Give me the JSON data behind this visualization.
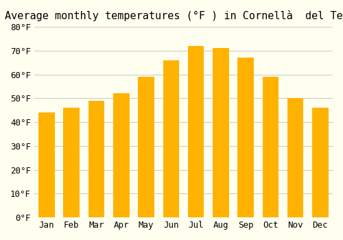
{
  "title": "Average monthly temperatures (°F ) in Cornellà  del Terri",
  "months": [
    "Jan",
    "Feb",
    "Mar",
    "Apr",
    "May",
    "Jun",
    "Jul",
    "Aug",
    "Sep",
    "Oct",
    "Nov",
    "Dec"
  ],
  "values": [
    44,
    46,
    49,
    52,
    59,
    66,
    72,
    71,
    67,
    59,
    50,
    46
  ],
  "bar_color_top": "#FFA500",
  "bar_color_bottom": "#FFD580",
  "ylim": [
    0,
    80
  ],
  "yticks": [
    0,
    10,
    20,
    30,
    40,
    50,
    60,
    70,
    80
  ],
  "ytick_labels": [
    "0°F",
    "10°F",
    "20°F",
    "30°F",
    "40°F",
    "50°F",
    "60°F",
    "70°F",
    "80°F"
  ],
  "background_color": "#FFFFF0",
  "grid_color": "#CCCCCC",
  "title_fontsize": 11,
  "tick_fontsize": 9,
  "bar_edge_color": "none"
}
